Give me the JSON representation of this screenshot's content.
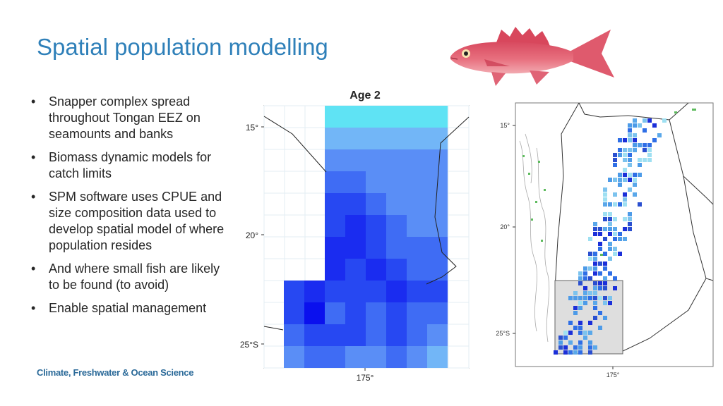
{
  "slide": {
    "title": "Spatial population modelling",
    "footer": "Climate, Freshwater & Ocean Science"
  },
  "bullets": [
    "Snapper complex spread throughout Tongan EEZ on seamounts and banks",
    "Biomass dynamic models for catch limits",
    "SPM software uses CPUE and size composition data used to develop spatial model of where population resides",
    "And where small fish are likely to be found (to avoid)",
    "Enable spatial management"
  ],
  "map_left": {
    "title": "Age 2",
    "y_ticks": [
      "15°",
      "20°",
      "25°S"
    ],
    "x_ticks": [
      "175°"
    ]
  },
  "map_right": {
    "y_ticks": [
      "15°",
      "20°",
      "25°S"
    ],
    "x_ticks": [
      "175°"
    ]
  },
  "images": {
    "fish": "red-snapper-fish-illustration"
  },
  "colors": {
    "title": "#2f80b9",
    "footer": "#2b6a99",
    "fish_body": "#e25a6e",
    "box_shade": "#dedede"
  }
}
